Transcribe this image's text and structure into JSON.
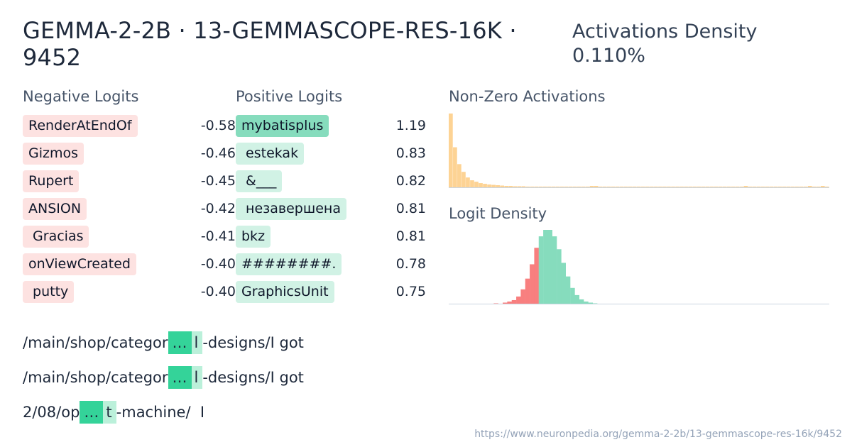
{
  "header": {
    "title": "GEMMA-2-2B · 13-GEMMASCOPE-RES-16K · 9452",
    "density_label": "Activations Density",
    "density_value": "0.110%"
  },
  "negative_logits": {
    "label": "Negative Logits",
    "items": [
      {
        "token": "RenderAtEndOf",
        "value": "-0.58"
      },
      {
        "token": "Gizmos",
        "value": "-0.46"
      },
      {
        "token": "Rupert",
        "value": "-0.45"
      },
      {
        "token": "ANSION",
        "value": "-0.42"
      },
      {
        "token": " Gracias",
        "value": "-0.41"
      },
      {
        "token": "onViewCreated",
        "value": "-0.40"
      },
      {
        "token": " putty",
        "value": "-0.40"
      }
    ]
  },
  "positive_logits": {
    "label": "Positive Logits",
    "items": [
      {
        "token": "mybatisplus",
        "value": "1.19"
      },
      {
        "token": " estekak",
        "value": "0.83"
      },
      {
        "token": " &___",
        "value": "0.82"
      },
      {
        "token": " незавершена",
        "value": "0.81"
      },
      {
        "token": "bkz",
        "value": "0.81"
      },
      {
        "token": "########.",
        "value": "0.78"
      },
      {
        "token": "GraphicsUnit",
        "value": "0.75"
      }
    ]
  },
  "charts": {
    "nonzero_label": "Non-Zero Activations",
    "logit_density_label": "Logit Density",
    "colors": {
      "activation": "#fdd394",
      "negative": "#f87f7f",
      "positive": "#86dcbd",
      "axis": "#cbd5e1"
    }
  },
  "chart_data": [
    {
      "type": "bar",
      "title": "Non-Zero Activations",
      "values": [
        105,
        57,
        33,
        22,
        14,
        10,
        8,
        6,
        5,
        4,
        3.5,
        3,
        2.5,
        2,
        2,
        1.5,
        1.5,
        1.5,
        1,
        1,
        1,
        1,
        1,
        1,
        1,
        1,
        1,
        1,
        1,
        1,
        1,
        1,
        1,
        2,
        2,
        1,
        1,
        1,
        1,
        1,
        1,
        1,
        1,
        1,
        1,
        1,
        1,
        1,
        1,
        1,
        1,
        1,
        1,
        1,
        1,
        1,
        1,
        1,
        1,
        1,
        1,
        1,
        1,
        1,
        1,
        1,
        1,
        1,
        1,
        2,
        1,
        1,
        1,
        1,
        1,
        1,
        1,
        1,
        1,
        1,
        1,
        1,
        1,
        1,
        2,
        1,
        1,
        2,
        1
      ],
      "ylim": [
        0,
        105
      ]
    },
    {
      "type": "bar",
      "title": "Logit Density",
      "series": [
        {
          "name": "negative",
          "values": [
            0,
            0,
            0,
            0,
            0,
            0,
            0,
            0,
            0,
            0,
            0.5,
            0,
            1.5,
            3,
            5,
            10,
            20,
            35,
            55,
            78,
            0,
            0,
            0,
            0,
            0,
            0,
            0,
            0,
            0,
            0,
            0,
            0,
            0,
            0,
            0,
            0,
            0,
            0,
            0,
            0,
            0,
            0,
            0,
            0,
            0,
            0,
            0,
            0,
            0,
            0,
            0,
            0,
            0,
            0,
            0,
            0,
            0,
            0,
            0,
            0,
            0,
            0,
            0,
            0,
            0,
            0,
            0,
            0,
            0,
            0,
            0
          ]
        },
        {
          "name": "positive",
          "values": [
            0,
            0,
            0,
            0,
            0,
            0,
            0,
            0,
            0,
            0,
            0,
            0,
            0,
            0,
            0,
            0,
            0,
            0,
            0,
            0,
            94,
            103,
            103,
            94,
            76,
            57,
            38,
            22,
            12,
            6,
            3,
            1.5,
            0.5,
            0,
            0,
            0,
            0,
            0,
            0,
            0,
            0,
            0,
            0,
            0,
            0,
            0,
            0,
            0,
            0,
            0,
            0,
            0,
            0,
            0,
            0,
            0,
            0,
            0,
            0,
            0,
            0,
            0,
            0,
            0,
            0,
            0,
            0,
            0,
            0,
            0,
            0
          ]
        }
      ],
      "ylim": [
        0,
        103
      ]
    }
  ],
  "examples": [
    {
      "pre": "/main/shop/categor",
      "hl": "…",
      "post_hl": "l",
      "post": "-designs/I got"
    },
    {
      "pre": "/main/shop/categor",
      "hl": "…",
      "post_hl": "l",
      "post": "-designs/I got"
    },
    {
      "pre": "2/08/op",
      "hl": "…",
      "post_hl": "t",
      "post": "-machine/  I"
    }
  ],
  "footer": {
    "url": "https://www.neuronpedia.org/gemma-2-2b/13-gemmascope-res-16k/9452"
  }
}
